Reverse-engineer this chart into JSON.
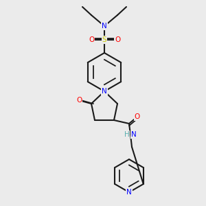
{
  "bg_color": "#ebebeb",
  "bond_color": "#1a1a1a",
  "bond_lw": 1.5,
  "atom_colors": {
    "N": "#0000ff",
    "O": "#ff0000",
    "S": "#cccc00",
    "H": "#5aafaf",
    "C": "#1a1a1a"
  },
  "font_size": 7.5
}
